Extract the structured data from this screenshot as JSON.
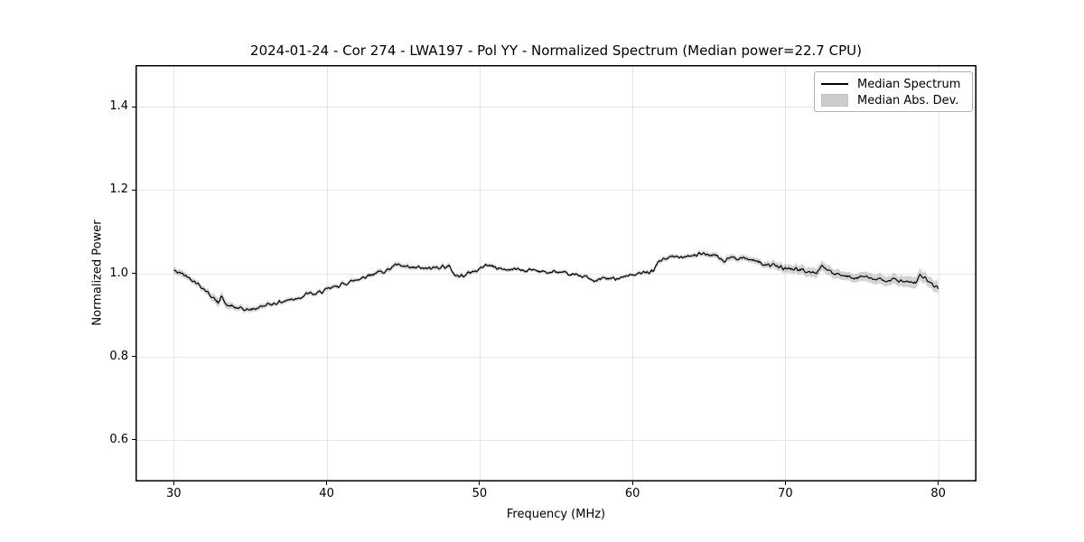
{
  "chart_data": {
    "type": "line",
    "title": "2024-01-24 - Cor 274 - LWA197 - Pol YY - Normalized Spectrum (Median power=22.7 CPU)",
    "xlabel": "Frequency (MHz)",
    "ylabel": "Normalized Power",
    "xlim": [
      27.5,
      82.5
    ],
    "ylim": [
      0.5,
      1.5
    ],
    "xticks": [
      30,
      40,
      50,
      60,
      70,
      80
    ],
    "xtick_labels": [
      "30",
      "40",
      "50",
      "60",
      "70",
      "80"
    ],
    "yticks": [
      0.6,
      0.8,
      1.0,
      1.2,
      1.4
    ],
    "ytick_labels": [
      "0.6",
      "0.8",
      "1.0",
      "1.2",
      "1.4"
    ],
    "grid": true,
    "grid_color": "#e6e6e6",
    "frame_color": "#000000",
    "background_color": "#ffffff",
    "legend_position": "upper right",
    "series": [
      {
        "name": "Median Spectrum",
        "type": "line",
        "color": "#000000",
        "x": [
          30,
          30.3,
          30.6,
          31,
          31.4,
          31.8,
          32.2,
          32.6,
          32.9,
          33.1,
          33.4,
          33.8,
          34.2,
          34.6,
          35,
          35.4,
          35.8,
          36.2,
          36.6,
          37,
          37.4,
          37.8,
          38.1,
          38.4,
          38.8,
          39.2,
          39.6,
          40,
          40.5,
          41,
          41.5,
          42,
          42.5,
          43,
          43.5,
          44,
          44.5,
          45,
          45.5,
          46,
          46.5,
          47,
          47.5,
          48,
          48.4,
          48.7,
          49,
          49.5,
          50,
          50.4,
          50.8,
          51.2,
          51.6,
          52,
          52.5,
          53,
          53.5,
          54,
          54.5,
          55,
          55.5,
          56,
          56.5,
          57,
          57.5,
          58,
          58.5,
          59,
          59.5,
          60,
          60.5,
          61,
          61.4,
          61.7,
          62,
          62.5,
          63,
          63.5,
          64,
          64.5,
          65,
          65.5,
          66,
          66.4,
          67,
          67.5,
          68,
          68.5,
          69,
          69.5,
          70,
          70.5,
          71,
          71.5,
          72,
          72.4,
          72.8,
          73.2,
          73.6,
          74,
          74.5,
          75,
          75.5,
          76,
          76.5,
          77,
          77.5,
          78,
          78.5,
          78.8,
          79.2,
          79.6,
          80
        ],
        "y": [
          1.006,
          1.002,
          0.998,
          0.99,
          0.98,
          0.968,
          0.955,
          0.94,
          0.928,
          0.948,
          0.924,
          0.92,
          0.916,
          0.913,
          0.912,
          0.916,
          0.921,
          0.925,
          0.928,
          0.931,
          0.935,
          0.938,
          0.941,
          0.944,
          0.952,
          0.949,
          0.955,
          0.96,
          0.967,
          0.973,
          0.979,
          0.985,
          0.992,
          0.998,
          1.003,
          1.008,
          1.02,
          1.016,
          1.012,
          1.014,
          1.01,
          1.013,
          1.016,
          1.016,
          0.996,
          0.992,
          0.997,
          1.003,
          1.009,
          1.021,
          1.017,
          1.012,
          1.01,
          1.008,
          1.011,
          1.006,
          1.009,
          1.005,
          1.001,
          1.004,
          0.999,
          0.996,
          0.996,
          0.991,
          0.979,
          0.989,
          0.986,
          0.989,
          0.993,
          0.996,
          0.999,
          1.001,
          1.006,
          1.028,
          1.034,
          1.038,
          1.04,
          1.042,
          1.043,
          1.046,
          1.045,
          1.041,
          1.028,
          1.038,
          1.037,
          1.035,
          1.031,
          1.023,
          1.02,
          1.016,
          1.011,
          1.011,
          1.008,
          1.003,
          1.0,
          1.019,
          1.006,
          0.998,
          0.995,
          0.992,
          0.99,
          0.993,
          0.988,
          0.985,
          0.982,
          0.986,
          0.981,
          0.978,
          0.975,
          0.996,
          0.986,
          0.974,
          0.963
        ]
      },
      {
        "name": "Median Abs. Dev.",
        "type": "band",
        "color": "rgba(130, 130, 130, 0.35)",
        "x": [
          30,
          31,
          32,
          33,
          34,
          35,
          36,
          38,
          40,
          42,
          44,
          46,
          48,
          50,
          52,
          54,
          56,
          58,
          60,
          61.7,
          63,
          65,
          66,
          68,
          70,
          71,
          72.4,
          74,
          75,
          76,
          77,
          78,
          78.8,
          79.5,
          80
        ],
        "half_width": [
          0.008,
          0.007,
          0.007,
          0.011,
          0.007,
          0.006,
          0.006,
          0.005,
          0.005,
          0.005,
          0.006,
          0.005,
          0.006,
          0.005,
          0.005,
          0.004,
          0.004,
          0.005,
          0.004,
          0.006,
          0.005,
          0.006,
          0.007,
          0.007,
          0.01,
          0.011,
          0.012,
          0.01,
          0.011,
          0.012,
          0.012,
          0.013,
          0.014,
          0.013,
          0.014
        ]
      }
    ],
    "noise": {
      "amplitude": 0.004,
      "seed": 42,
      "step_mhz": 0.05
    }
  }
}
